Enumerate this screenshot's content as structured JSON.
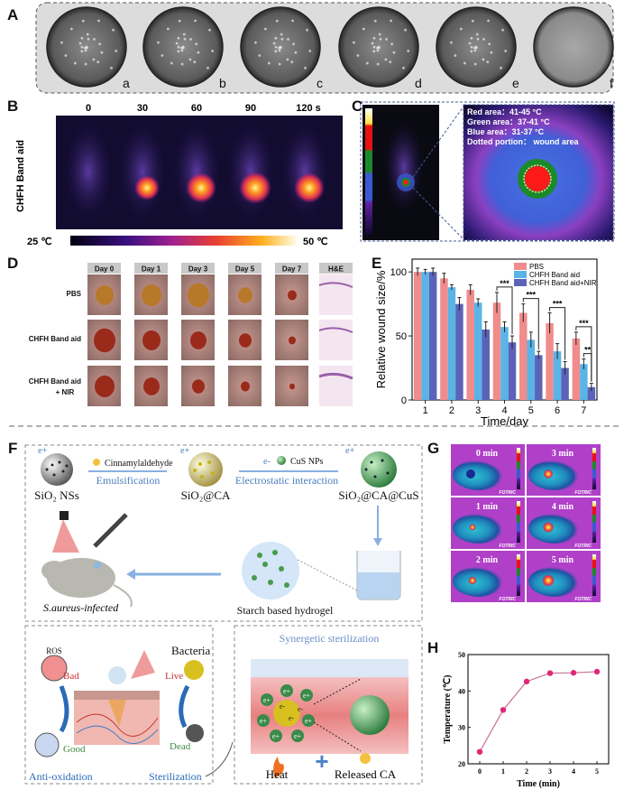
{
  "panel_labels": [
    "A",
    "B",
    "C",
    "D",
    "E",
    "F",
    "G",
    "H"
  ],
  "panel_a": {
    "dish_labels": [
      "a",
      "b",
      "c",
      "d",
      "e",
      "f"
    ]
  },
  "panel_b": {
    "time_labels": [
      "0",
      "30",
      "60",
      "90",
      "120 s"
    ],
    "side_label": "CHFH Band aid",
    "scale_min": "25 ℃",
    "scale_max": "50 ℃"
  },
  "panel_c": {
    "legend": [
      "Red area：41-45 °C",
      "Green area：37-41 °C",
      "Blue area：31-37 °C",
      "Dotted portion： wound area"
    ],
    "colors": {
      "red": "#ff1a1a",
      "green": "#1a8a2a",
      "blue": "#3a5ad0",
      "dotted": "#f5e6a0"
    }
  },
  "panel_d": {
    "columns": [
      "Day 0",
      "Day 1",
      "Day 3",
      "Day 5",
      "Day 7",
      "H&E"
    ],
    "rows": [
      {
        "label": [
          "PBS"
        ]
      },
      {
        "label": [
          "CHFH Band aid"
        ]
      },
      {
        "label": [
          "CHFH Band aid",
          "+ NIR"
        ]
      }
    ]
  },
  "panel_f": {
    "charges": {
      "positive": "e+",
      "negative": "e-"
    },
    "sio2": "SiO₂ NSs",
    "sio2_ca": "SiO₂@CA",
    "sio2_ca_cus": "SiO₂@CA@CuS",
    "cinnamylaldehyde": "Cinnamylaldehyde",
    "emulsification": "Emulsification",
    "cus_nps": "CuS NPs",
    "electrostatic": "Electrostatic interaction",
    "infected": "S.aureus-infected",
    "hydrogel": "Starch based hydrogel",
    "ros": "ROS",
    "bad": "Bad",
    "good": "Good",
    "bacteria": "Bacteria",
    "live": "Live",
    "dead": "Dead",
    "anti_oxidation": "Anti-oxidation",
    "sterilization": "Sterilization",
    "synergetic": "Synergetic sterilization",
    "heat": "Heat",
    "released_ca": "Released CA",
    "plus": "+"
  },
  "panel_g": {
    "labels": [
      "0 min",
      "3 min",
      "1 min",
      "4 min",
      "2 min",
      "5 min"
    ],
    "brand": "FOTRIC"
  },
  "chart_data": [
    {
      "id": "E",
      "type": "bar",
      "categories": [
        "1",
        "2",
        "3",
        "4",
        "5",
        "6",
        "7"
      ],
      "xlabel": "Time/day",
      "ylabel": "Relative wound size/%",
      "ylim": [
        0,
        110
      ],
      "yticks": [
        0,
        50,
        100
      ],
      "grid": false,
      "legend_position": "top-right",
      "series": [
        {
          "name": "PBS",
          "color": "#f08c8c",
          "values": [
            100,
            95,
            86,
            76,
            68,
            60,
            48
          ],
          "errors": [
            3,
            4,
            4,
            8,
            7,
            8,
            5
          ]
        },
        {
          "name": "CHFH Band aid",
          "color": "#5ab4e6",
          "values": [
            100,
            88,
            76,
            57,
            47,
            38,
            28
          ],
          "errors": [
            2,
            2,
            3,
            4,
            6,
            6,
            4
          ]
        },
        {
          "name": "CHFH Band aid+NIR",
          "color": "#5b63b8",
          "values": [
            100,
            75,
            55,
            45,
            35,
            25,
            10
          ],
          "errors": [
            3,
            5,
            6,
            5,
            3,
            5,
            3
          ]
        }
      ],
      "annotations": [
        {
          "category": "4",
          "from": "PBS",
          "to": "CHFH Band aid+NIR",
          "label": "***"
        },
        {
          "category": "5",
          "from": "PBS",
          "to": "CHFH Band aid+NIR",
          "label": "***"
        },
        {
          "category": "6",
          "from": "PBS",
          "to": "CHFH Band aid+NIR",
          "label": "***"
        },
        {
          "category": "7",
          "from": "PBS",
          "to": "CHFH Band aid+NIR",
          "label": "***"
        },
        {
          "category": "7",
          "from": "CHFH Band aid",
          "to": "CHFH Band aid+NIR",
          "label": "**"
        }
      ]
    },
    {
      "id": "H",
      "type": "line",
      "x": [
        0,
        1,
        2,
        3,
        4,
        5
      ],
      "y": [
        23.3,
        34.8,
        42.6,
        44.9,
        45.0,
        45.3
      ],
      "xlabel": "Time (min)",
      "ylabel": "Temperature (℃)",
      "xlim": [
        -0.5,
        5.5
      ],
      "ylim": [
        20,
        50
      ],
      "xticks": [
        0,
        1,
        2,
        3,
        4,
        5
      ],
      "yticks": [
        20,
        30,
        40,
        50
      ],
      "grid": false,
      "marker_color": "#e0287a",
      "line_color": "#c7709a"
    }
  ]
}
